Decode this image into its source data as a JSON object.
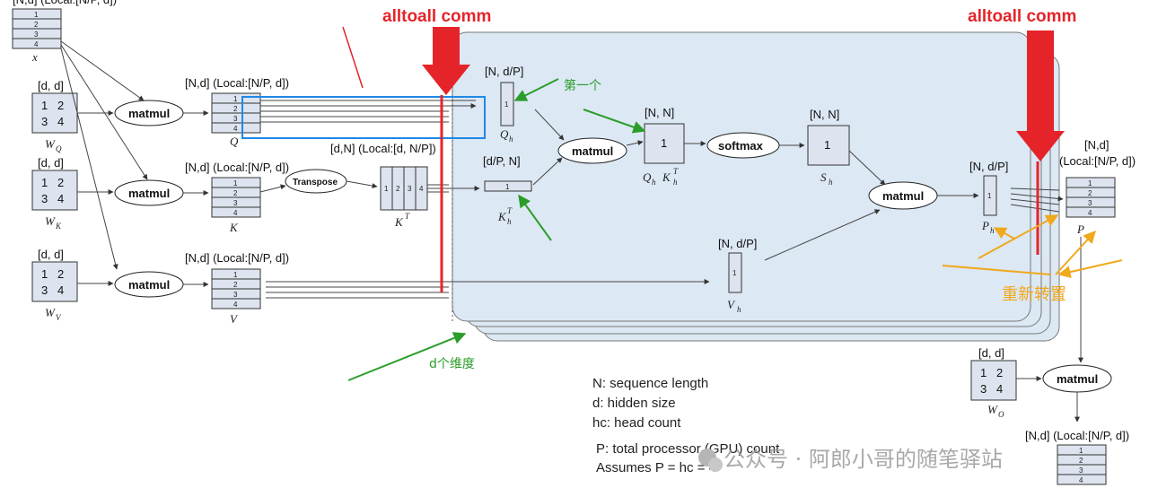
{
  "labels": {
    "x_shape": "[N,d] (Local:[N/P, d])",
    "x_name": "x",
    "wq_shape": "[d, d]",
    "wq_name": "W",
    "wq_sub": "Q",
    "wk_shape": "[d, d]",
    "wk_name": "W",
    "wk_sub": "K",
    "wv_shape": "[d, d]",
    "wv_name": "W",
    "wv_sub": "V",
    "wo_shape": "[d, d]",
    "wo_name": "W",
    "wo_sub": "O",
    "q_shape": "[N,d] (Local:[N/P, d])",
    "q_name": "Q",
    "k_shape": "[N,d] (Local:[N/P, d])",
    "k_name": "K",
    "v_shape": "[N,d] (Local:[N/P, d])",
    "v_name": "V",
    "kt_shape": "[d,N] (Local:[d, N/P])",
    "kt_name": "K",
    "kt_sup": "T",
    "qh_shape": "[N, d/P]",
    "qh_name": "Q",
    "qh_sub": "h",
    "kht_shape": "[d/P, N]",
    "kht_name": "K",
    "kht_sub": "h",
    "kht_sup": "T",
    "qk_shape": "[N, N]",
    "qk_name": "Q",
    "qk_name2": "K",
    "qk_sub": "h",
    "qk_sup": "T",
    "sh_shape": "[N, N]",
    "sh_name": "S",
    "sh_sub": "h",
    "vh_shape": "[N, d/P]",
    "vh_name": "V",
    "vh_sub": "h",
    "ph_shape": "[N, d/P]",
    "ph_name": "P",
    "ph_sub": "h",
    "p_shape": "[N,d]",
    "p_shape2": "(Local:[N/P, d])",
    "p_name": "P",
    "out_shape": "[N,d] (Local:[N/P, d])"
  },
  "ops": {
    "matmul": "matmul",
    "softmax": "softmax",
    "transpose": "Transpose"
  },
  "cells": {
    "one": "1",
    "two": "2",
    "three": "3",
    "four": "4"
  },
  "annotations": {
    "alltoall_left": "alltoall comm",
    "alltoall_right": "alltoall comm",
    "first": "第一个",
    "d_dims": "d个维度",
    "reshape": "重新转置"
  },
  "legend": [
    "N: sequence length",
    "d: hidden size",
    "hc: head count",
    "P: total processor (GPU) count",
    "Assumes P = hc = 4"
  ],
  "watermark": "公众号 · 阿郎小哥的随笔驿站",
  "colors": {
    "panel": "#dce8f4",
    "red": "#e5242a",
    "green": "#2a9d2a",
    "yellow": "#f0a81c",
    "blue": "#1f88e5",
    "matrix": "#dde4ef"
  }
}
